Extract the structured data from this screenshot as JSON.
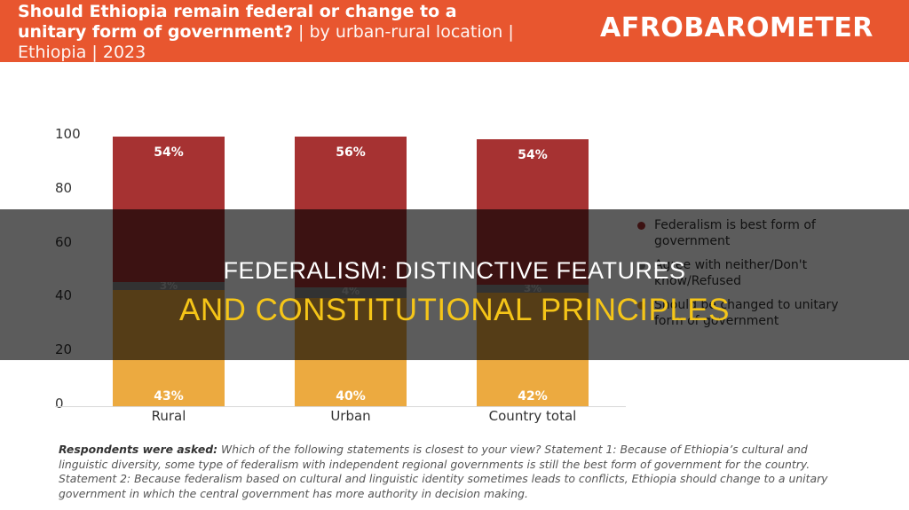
{
  "header": {
    "title_bold": "Should Ethiopia remain federal or change to a unitary form of government?",
    "title_rest": " | by urban-rural location | Ethiopia | 2023",
    "logo": "AFROBAROMETER"
  },
  "overlay": {
    "line1": "FEDERALISM: DISTINCTIVE FEATURES",
    "line2": "AND CONSTITUTIONAL PRINCIPLES"
  },
  "footnote": {
    "lead": "Respondents were asked:",
    "text": " Which of the following statements is closest to your view? Statement 1: Because of Ethiopia’s cultural and linguistic diversity, some type of federalism with independent regional governments is still the best form of government for the country. Statement 2: Because federalism based on cultural and linguistic identity sometimes leads to conflicts, Ethiopia should change to a unitary government in which the central government has more authority in decision making."
  },
  "colors": {
    "header_bg": "#e8562f",
    "federalism": "#a63232",
    "neither": "#8a8a8a",
    "unitary": "#ecaa40"
  },
  "chart_data": {
    "type": "bar",
    "stacked": true,
    "title": "Should Ethiopia remain federal or change to a unitary form of government? | by urban-rural location | Ethiopia | 2023",
    "categories": [
      "Rural",
      "Urban",
      "Country total"
    ],
    "series": [
      {
        "name": "Should be changed to unitary form of government",
        "color": "#ecaa40",
        "values": [
          43,
          40,
          42
        ],
        "labels": [
          "43%",
          "40%",
          "42%"
        ]
      },
      {
        "name": "Agree with neither/Don't know/Refused",
        "color": "#8a8a8a",
        "values": [
          3,
          4,
          3
        ],
        "labels": [
          "3%",
          "4%",
          "3%"
        ]
      },
      {
        "name": "Federalism is best form of government",
        "color": "#a63232",
        "values": [
          54,
          56,
          54
        ],
        "labels": [
          "54%",
          "56%",
          "54%"
        ]
      }
    ],
    "yticks": [
      "0",
      "20",
      "40",
      "60",
      "80",
      "100"
    ],
    "ylim": [
      0,
      100
    ],
    "xlabel": "",
    "ylabel": "",
    "grid": false,
    "legend_position": "right"
  }
}
